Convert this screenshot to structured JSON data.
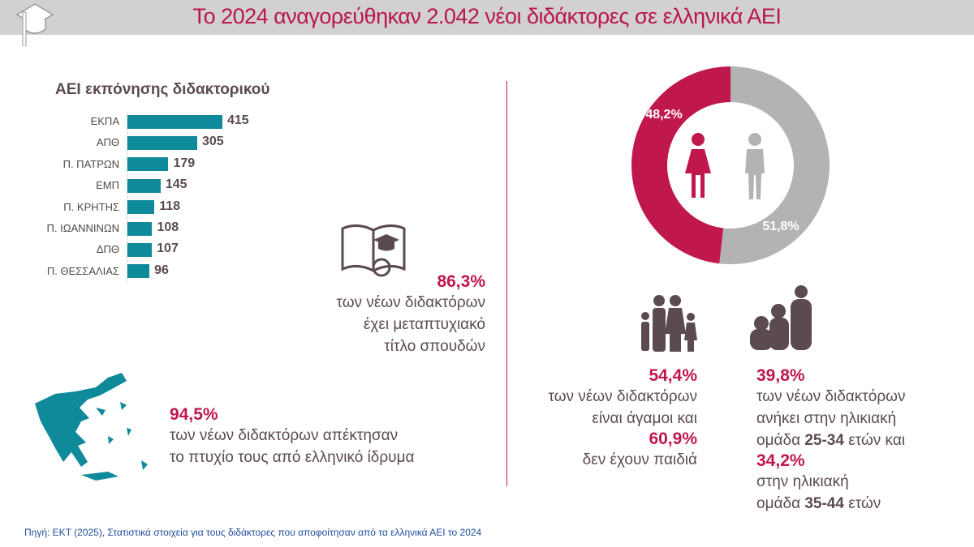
{
  "header": {
    "title": "Το 2024 αναγορεύθηκαν 2.042 νέοι διδάκτορες σε ελληνικά ΑΕΙ",
    "icon": "graduation-cap-icon"
  },
  "chart_data": [
    {
      "type": "bar",
      "orientation": "horizontal",
      "title": "ΑΕΙ εκπόνησης διδακτορικού",
      "categories": [
        "ΕΚΠΑ",
        "ΑΠΘ",
        "Π. ΠΑΤΡΩΝ",
        "ΕΜΠ",
        "Π. ΚΡΗΤΗΣ",
        "Π. ΙΩΑΝΝΙΝΩΝ",
        "ΔΠΘ",
        "Π. ΘΕΣΣΑΛΙΑΣ"
      ],
      "values": [
        415,
        305,
        179,
        145,
        118,
        108,
        107,
        96
      ],
      "color": "#0f8a9b",
      "grid": false
    },
    {
      "type": "pie",
      "donut": true,
      "labels": [
        "48,2%",
        "51,8%"
      ],
      "values": [
        48.2,
        51.8
      ],
      "colors": [
        "#c0174d",
        "#b3b3b3"
      ],
      "legend_icons": [
        "female-icon",
        "male-icon"
      ]
    }
  ],
  "stats": {
    "masters": {
      "pct": "86,3%",
      "lines": [
        "των νέων διδακτόρων",
        "έχει μεταπτυχιακό",
        "τίτλο σπουδών"
      ]
    },
    "greece": {
      "pct": "94,5%",
      "lines": [
        "των νέων διδακτόρων απέκτησαν",
        "το πτυχίο τους από ελληνικό ίδρυμα"
      ]
    },
    "family": {
      "pct1": "54,4%",
      "line1": "των νέων διδακτόρων",
      "line2": "είναι άγαμοι και",
      "pct2": "60,9%",
      "line3": "δεν έχουν παιδιά"
    },
    "age": {
      "pct1": "39,8%",
      "line1": "των νέων διδακτόρων",
      "line2": "ανήκει στην ηλικιακή",
      "line3a": "ομάδα ",
      "range1": "25-34",
      "line3b": " ετών και",
      "pct2": "34,2%",
      "line4": "στην ηλικιακή",
      "line5a": "ομάδα ",
      "range2": "35-44",
      "line5b": " ετών"
    }
  },
  "source": "Πηγή: ΕΚΤ (2025), Στατιστικά  στοιχεία για τους διδάκτορες που αποφοίτησαν από τα ελληνικά ΑΕΙ το 2024"
}
